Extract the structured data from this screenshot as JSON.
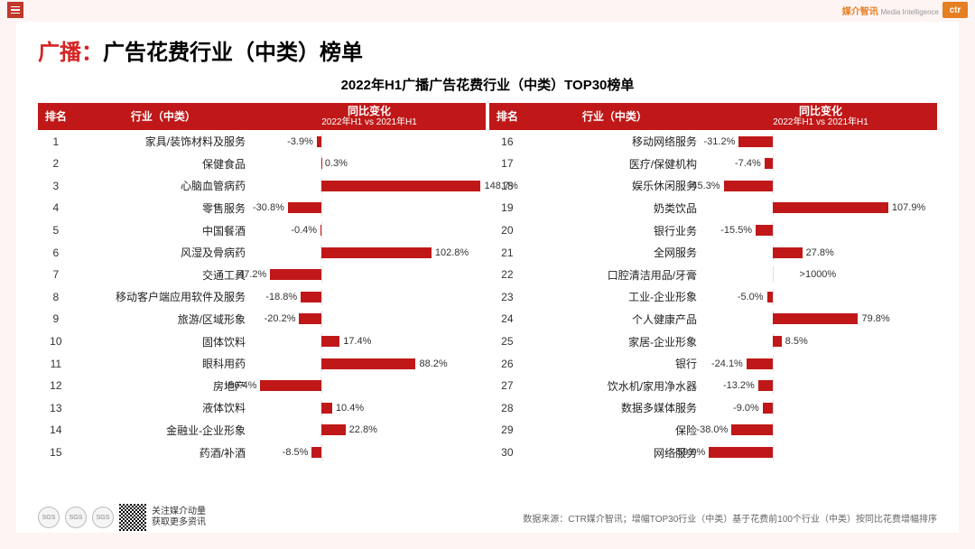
{
  "brand": {
    "cn": "媒介智讯",
    "en": "Media Intelligence",
    "logo": "ctr"
  },
  "title": {
    "red": "广播：",
    "black": "广告花费行业（中类）榜单"
  },
  "subtitle": "2022年H1广播广告花费行业（中类）TOP30榜单",
  "columns": {
    "rank": "排名",
    "industry": "行业（中类）",
    "change": "同比变化",
    "change_sub": "2022年H1 vs 2021年H1"
  },
  "chart": {
    "neg_max_pct": 60,
    "pos_max_pct": 150,
    "axis_split": 0.286,
    "bar_color": "#c01818",
    "header_bg": "#c01818",
    "header_fg": "#ffffff",
    "grid_color": "#e0e0e0"
  },
  "left": [
    {
      "rank": 1,
      "name": "家具/装饰材料及服务",
      "val": -3.9,
      "label": "-3.9%"
    },
    {
      "rank": 2,
      "name": "保健食品",
      "val": 0.3,
      "label": "0.3%"
    },
    {
      "rank": 3,
      "name": "心脑血管病药",
      "val": 148.7,
      "label": "148.7%"
    },
    {
      "rank": 4,
      "name": "零售服务",
      "val": -30.8,
      "label": "-30.8%"
    },
    {
      "rank": 5,
      "name": "中国餐酒",
      "val": -0.4,
      "label": "-0.4%"
    },
    {
      "rank": 6,
      "name": "风湿及骨病药",
      "val": 102.8,
      "label": "102.8%"
    },
    {
      "rank": 7,
      "name": "交通工具",
      "val": -47.2,
      "label": "-47.2%"
    },
    {
      "rank": 8,
      "name": "移动客户端应用软件及服务",
      "val": -18.8,
      "label": "-18.8%"
    },
    {
      "rank": 9,
      "name": "旅游/区域形象",
      "val": -20.2,
      "label": "-20.2%"
    },
    {
      "rank": 10,
      "name": "固体饮料",
      "val": 17.4,
      "label": "17.4%"
    },
    {
      "rank": 11,
      "name": "眼科用药",
      "val": 88.2,
      "label": "88.2%"
    },
    {
      "rank": 12,
      "name": "房地产",
      "val": -56.4,
      "label": "-56.4%"
    },
    {
      "rank": 13,
      "name": "液体饮料",
      "val": 10.4,
      "label": "10.4%"
    },
    {
      "rank": 14,
      "name": "金融业-企业形象",
      "val": 22.8,
      "label": "22.8%"
    },
    {
      "rank": 15,
      "name": "药酒/补酒",
      "val": -8.5,
      "label": "-8.5%"
    }
  ],
  "right": [
    {
      "rank": 16,
      "name": "移动网络服务",
      "val": -31.2,
      "label": "-31.2%"
    },
    {
      "rank": 17,
      "name": "医疗/保健机构",
      "val": -7.4,
      "label": "-7.4%"
    },
    {
      "rank": 18,
      "name": "娱乐休闲服务",
      "val": -45.3,
      "label": "-45.3%"
    },
    {
      "rank": 19,
      "name": "奶类饮品",
      "val": 107.9,
      "label": "107.9%"
    },
    {
      "rank": 20,
      "name": "银行业务",
      "val": -15.5,
      "label": "-15.5%"
    },
    {
      "rank": 21,
      "name": "全网服务",
      "val": 27.8,
      "label": "27.8%"
    },
    {
      "rank": 22,
      "name": "口腔清洁用品/牙膏",
      "val": 150,
      "label": ">1000%",
      "overflow": true
    },
    {
      "rank": 23,
      "name": "工业-企业形象",
      "val": -5.0,
      "label": "-5.0%"
    },
    {
      "rank": 24,
      "name": "个人健康产品",
      "val": 79.8,
      "label": "79.8%"
    },
    {
      "rank": 25,
      "name": "家居-企业形象",
      "val": 8.5,
      "label": "8.5%"
    },
    {
      "rank": 26,
      "name": "银行",
      "val": -24.1,
      "label": "-24.1%"
    },
    {
      "rank": 27,
      "name": "饮水机/家用净水器",
      "val": -13.2,
      "label": "-13.2%"
    },
    {
      "rank": 28,
      "name": "数据多媒体服务",
      "val": -9.0,
      "label": "-9.0%"
    },
    {
      "rank": 29,
      "name": "保险",
      "val": -38.0,
      "label": "-38.0%"
    },
    {
      "rank": 30,
      "name": "网络服务",
      "val": -59.0,
      "label": "-59.0%"
    }
  ],
  "footer": {
    "qr_line1": "关注媒介动量",
    "qr_line2": "获取更多资讯",
    "source": "数据来源：CTR媒介智讯；增幅TOP30行业（中类）基于花费前100个行业（中类）按同比花费增幅排序",
    "badge": "SGS"
  }
}
